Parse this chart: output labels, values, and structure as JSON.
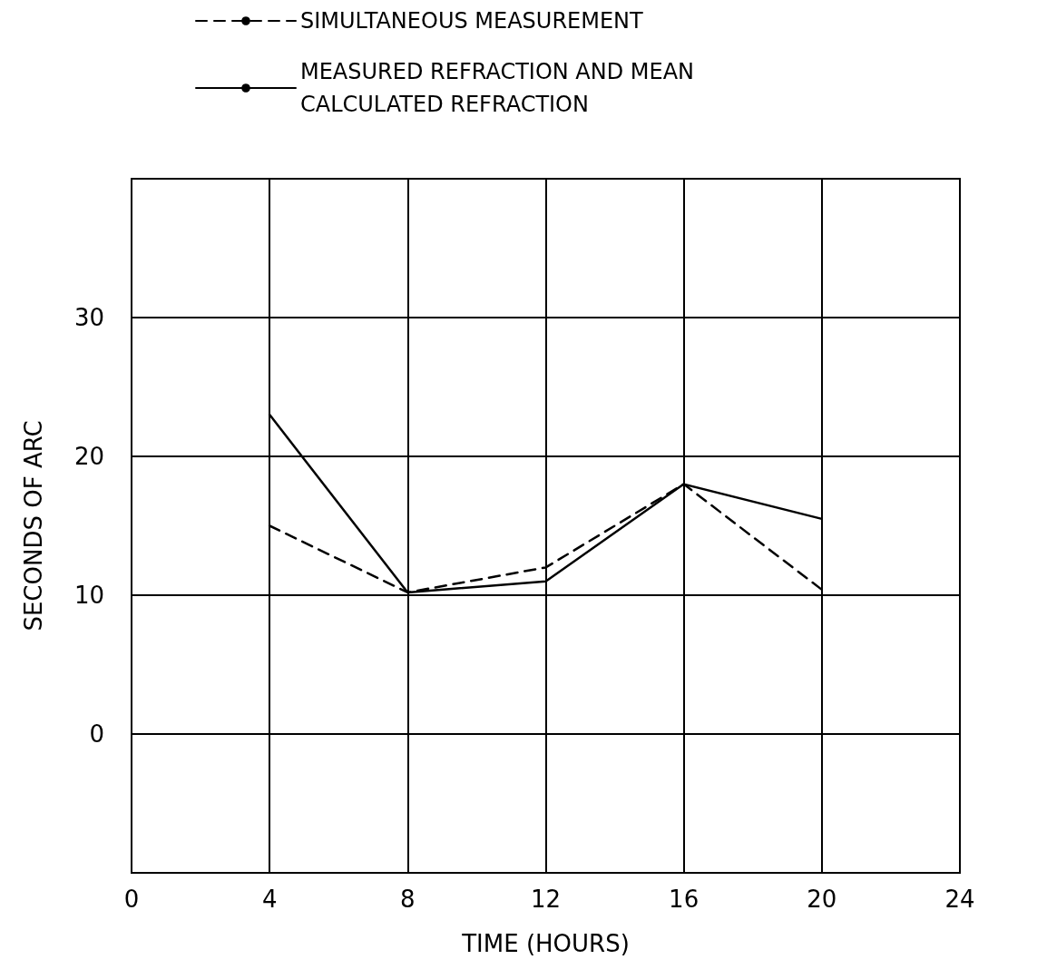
{
  "chart_data": {
    "type": "line",
    "xlabel": "TIME (HOURS)",
    "ylabel": "SECONDS OF ARC",
    "x": [
      4,
      8,
      12,
      16,
      20
    ],
    "series": [
      {
        "name": "SIMULTANEOUS MEASUREMENT",
        "color": "#000000",
        "line_style": "dashed",
        "values": [
          15,
          10.2,
          12,
          18,
          10.4
        ]
      },
      {
        "name": "MEASURED REFRACTION AND MEAN CALCULATED REFRACTION",
        "color": "#000000",
        "line_style": "solid",
        "values": [
          23,
          10.2,
          11,
          18,
          15.5
        ]
      }
    ],
    "xlim": [
      0,
      24
    ],
    "xticks": [
      0,
      4,
      8,
      12,
      16,
      20,
      24
    ],
    "ylim": [
      -10,
      40
    ],
    "yticks": [
      0,
      10,
      20,
      30
    ],
    "grid": true,
    "legend": "top",
    "marker": "none"
  }
}
